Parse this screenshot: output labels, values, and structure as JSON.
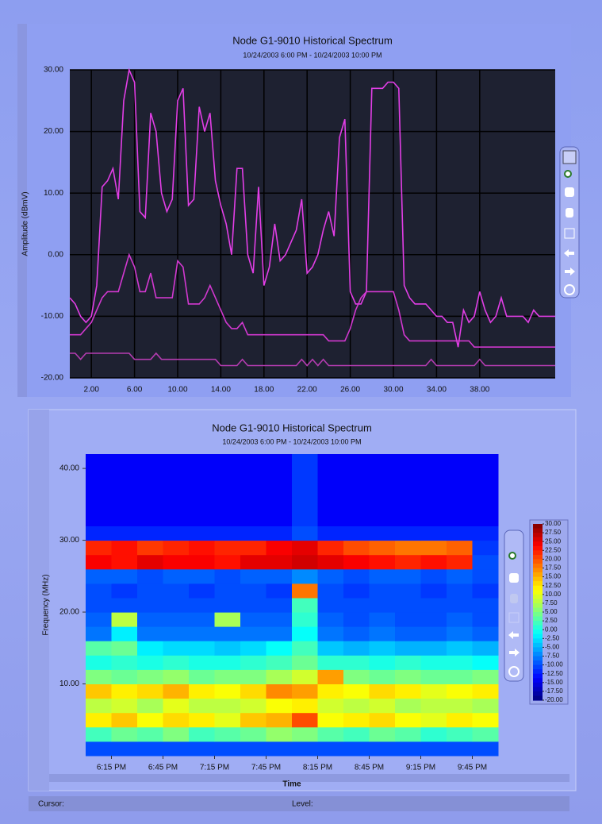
{
  "chart_data": [
    {
      "type": "line",
      "title": "Node G1-9010 Historical Spectrum",
      "subtitle": "10/24/2003 6:00 PM - 10/24/2003 10:00 PM",
      "ylabel": "Amplitude (dBmV)",
      "x": [
        0,
        0.5,
        1,
        1.5,
        2,
        2.5,
        3,
        3.5,
        4,
        4.5,
        5,
        5.5,
        6,
        6.5,
        7,
        7.5,
        8,
        8.5,
        9,
        9.5,
        10,
        10.5,
        11,
        11.5,
        12,
        12.5,
        13,
        13.5,
        14,
        14.5,
        15,
        15.5,
        16,
        16.5,
        17,
        17.5,
        18,
        18.5,
        19,
        19.5,
        20,
        20.5,
        21,
        21.5,
        22,
        22.5,
        23,
        23.5,
        24,
        24.5,
        25,
        25.5,
        26,
        26.5,
        27,
        27.5,
        28,
        28.5,
        29,
        29.5,
        30,
        30.5,
        31,
        31.5,
        32,
        32.5,
        33,
        33.5,
        34,
        34.5,
        35,
        35.5,
        36,
        36.5,
        37,
        37.5,
        38,
        38.5,
        39,
        39.5,
        40,
        40.5,
        41,
        41.5,
        42,
        42.5,
        43,
        43.5,
        44,
        44.5,
        45
      ],
      "series": [
        {
          "color": "#e23ee6",
          "values": [
            -7,
            -8,
            -10,
            -11,
            -10,
            -5,
            11,
            12,
            14,
            9,
            25,
            30,
            28,
            7,
            6,
            23,
            20,
            10,
            7,
            9,
            25,
            27,
            8,
            9,
            24,
            20,
            23,
            12,
            8,
            5,
            0,
            14,
            14,
            0,
            -3,
            11,
            -5,
            -2,
            5,
            -1,
            0,
            2,
            4,
            9,
            -3,
            -2,
            0,
            4,
            7,
            3,
            19,
            22,
            -6,
            -8,
            -8,
            -6,
            27,
            27,
            27,
            28,
            28,
            27,
            -5,
            -7,
            -8,
            -8,
            -8,
            -9,
            -10,
            -10,
            -11,
            -11,
            -15,
            -9,
            -11,
            -10,
            -6,
            -9,
            -11,
            -10,
            -7,
            -10,
            -10,
            -10,
            -10,
            -11,
            -9,
            -10,
            -10,
            -10,
            -10
          ]
        },
        {
          "color": "#d238d0",
          "values": [
            -13,
            -13,
            -13,
            -12,
            -11,
            -9,
            -7,
            -6,
            -6,
            -6,
            -3,
            0,
            -2,
            -6,
            -6,
            -3,
            -7,
            -7,
            -7,
            -7,
            -1,
            -2,
            -8,
            -8,
            -8,
            -7,
            -5,
            -7,
            -9,
            -11,
            -12,
            -12,
            -11,
            -13,
            -13,
            -13,
            -13,
            -13,
            -13,
            -13,
            -13,
            -13,
            -13,
            -13,
            -13,
            -13,
            -13,
            -13,
            -14,
            -14,
            -14,
            -14,
            -12,
            -9,
            -7,
            -6,
            -6,
            -6,
            -6,
            -6,
            -6,
            -9,
            -13,
            -14,
            -14,
            -14,
            -14,
            -14,
            -14,
            -14,
            -14,
            -14,
            -14,
            -14,
            -14,
            -15,
            -15,
            -15,
            -15,
            -15,
            -15,
            -15,
            -15,
            -15,
            -15,
            -15,
            -15,
            -15,
            -15,
            -15,
            -15
          ]
        },
        {
          "color": "#b43cb0",
          "values": [
            -16,
            -16,
            -17,
            -16,
            -16,
            -16,
            -16,
            -16,
            -16,
            -16,
            -16,
            -16,
            -17,
            -17,
            -17,
            -17,
            -16,
            -17,
            -17,
            -17,
            -17,
            -17,
            -17,
            -17,
            -17,
            -17,
            -17,
            -17,
            -18,
            -18,
            -18,
            -18,
            -17,
            -18,
            -18,
            -18,
            -18,
            -18,
            -18,
            -18,
            -18,
            -18,
            -18,
            -17,
            -18,
            -17,
            -18,
            -17,
            -18,
            -18,
            -18,
            -18,
            -18,
            -18,
            -18,
            -18,
            -18,
            -18,
            -18,
            -18,
            -18,
            -18,
            -18,
            -18,
            -18,
            -18,
            -18,
            -17,
            -18,
            -18,
            -18,
            -18,
            -18,
            -18,
            -18,
            -18,
            -17,
            -18,
            -18,
            -18,
            -18,
            -18,
            -18,
            -18,
            -18,
            -18,
            -18,
            -18,
            -18,
            -18,
            -18
          ]
        }
      ],
      "xlim": [
        0,
        45
      ],
      "xticks": [
        {
          "value": 2,
          "label": "2.00"
        },
        {
          "value": 6,
          "label": "6.00"
        },
        {
          "value": 10,
          "label": "10.00"
        },
        {
          "value": 14,
          "label": "14.00"
        },
        {
          "value": 18,
          "label": "18.00"
        },
        {
          "value": 22,
          "label": "22.00"
        },
        {
          "value": 26,
          "label": "26.00"
        },
        {
          "value": 30,
          "label": "30.00"
        },
        {
          "value": 34,
          "label": "34.00"
        },
        {
          "value": 38,
          "label": "38.00"
        }
      ],
      "ylim": [
        -20,
        30
      ],
      "yticks": [
        {
          "value": 30,
          "label": "30.00"
        },
        {
          "value": 20,
          "label": "20.00"
        },
        {
          "value": 10,
          "label": "10.00"
        },
        {
          "value": 0,
          "label": "0.00"
        },
        {
          "value": -10,
          "label": "-10.00"
        },
        {
          "value": -20,
          "label": "-20.00"
        }
      ],
      "grid": true
    },
    {
      "type": "heatmap",
      "title": "Node G1-9010 Historical Spectrum",
      "subtitle": "10/24/2003 6:00 PM - 10/24/2003 10:00 PM",
      "ylabel": "Frequency (MHz)",
      "xlabel": "Time",
      "x": [
        18.125,
        18.375,
        18.625,
        18.875,
        19.125,
        19.375,
        19.625,
        19.875,
        20.125,
        20.375,
        20.625,
        20.875,
        21.125,
        21.375,
        21.625,
        21.875
      ],
      "y": [
        1,
        3,
        5,
        7,
        9,
        11,
        13,
        15,
        17,
        19,
        21,
        23,
        25,
        27,
        29,
        31,
        33,
        35,
        37,
        39,
        41
      ],
      "z": [
        [
          -10,
          -10,
          -10,
          -10,
          -10,
          -10,
          -10,
          -10,
          -10,
          -10,
          -10,
          -10,
          -10,
          -10,
          -10,
          -10
        ],
        [
          2,
          4,
          3,
          5,
          2,
          3,
          4,
          6,
          5,
          3,
          2,
          4,
          3,
          1,
          2,
          3
        ],
        [
          12,
          14,
          11,
          13,
          12,
          10,
          14,
          15,
          20,
          11,
          12,
          13,
          11,
          10,
          12,
          11
        ],
        [
          8,
          9,
          7,
          10,
          8,
          8,
          9,
          11,
          12,
          9,
          8,
          9,
          7,
          8,
          8,
          7
        ],
        [
          14,
          12,
          13,
          15,
          12,
          11,
          13,
          17,
          16,
          12,
          11,
          13,
          12,
          10,
          11,
          12
        ],
        [
          5,
          4,
          5,
          6,
          4,
          5,
          5,
          7,
          9,
          16,
          5,
          4,
          5,
          4,
          4,
          5
        ],
        [
          0,
          1,
          0,
          1,
          0,
          0,
          1,
          2,
          4,
          1,
          1,
          0,
          1,
          0,
          0,
          -1
        ],
        [
          3,
          4,
          -2,
          -3,
          -3,
          -4,
          -3,
          -1,
          2,
          -4,
          -5,
          -4,
          -5,
          -5,
          -4,
          -5
        ],
        [
          -8,
          -2,
          -8,
          -8,
          -8,
          -8,
          -8,
          -8,
          -1,
          -8,
          -9,
          -8,
          -9,
          -9,
          -8,
          -9
        ],
        [
          -9,
          8,
          -9,
          -9,
          -9,
          7,
          -9,
          -9,
          1,
          -9,
          -10,
          -9,
          -10,
          -10,
          -9,
          -10
        ],
        [
          -10,
          -10,
          -10,
          -10,
          -10,
          -10,
          -10,
          -10,
          2,
          -10,
          -10,
          -10,
          -10,
          -10,
          -10,
          -10
        ],
        [
          -10,
          -11,
          -10,
          -10,
          -11,
          -10,
          -10,
          -11,
          18,
          -10,
          -11,
          -10,
          -10,
          -11,
          -10,
          -11
        ],
        [
          -9,
          -9,
          -10,
          -9,
          -9,
          -10,
          -9,
          -9,
          -7,
          -9,
          -10,
          -9,
          -9,
          -10,
          -9,
          -10
        ],
        [
          24,
          23,
          25,
          24,
          24,
          23,
          25,
          25,
          26,
          25,
          24,
          23,
          22,
          23,
          22,
          -10
        ],
        [
          22,
          23,
          21,
          22,
          23,
          22,
          22,
          24,
          25,
          22,
          20,
          19,
          18,
          18,
          19,
          -11
        ],
        [
          -12,
          -12,
          -12,
          -12,
          -12,
          -12,
          -12,
          -12,
          -10,
          -12,
          -12,
          -12,
          -12,
          -12,
          -12,
          -12
        ],
        [
          -14,
          -14,
          -14,
          -14,
          -14,
          -14,
          -14,
          -14,
          -11,
          -14,
          -14,
          -14,
          -14,
          -14,
          -14,
          -14
        ],
        [
          -14,
          -14,
          -14,
          -14,
          -14,
          -14,
          -14,
          -14,
          -11,
          -14,
          -14,
          -14,
          -14,
          -14,
          -14,
          -14
        ],
        [
          -14,
          -14,
          -14,
          -14,
          -14,
          -14,
          -14,
          -14,
          -11,
          -14,
          -14,
          -14,
          -14,
          -14,
          -14,
          -14
        ],
        [
          -14,
          -14,
          -14,
          -14,
          -14,
          -14,
          -14,
          -14,
          -11,
          -14,
          -14,
          -14,
          -14,
          -14,
          -14,
          -14
        ],
        [
          -14,
          -14,
          -14,
          -14,
          -14,
          -14,
          -14,
          -14,
          -11,
          -14,
          -14,
          -14,
          -14,
          -14,
          -14,
          -14
        ]
      ],
      "xlim": [
        18,
        22
      ],
      "xticks": [
        {
          "value": 18.25,
          "label": "6:15 PM"
        },
        {
          "value": 18.75,
          "label": "6:45 PM"
        },
        {
          "value": 19.25,
          "label": "7:15 PM"
        },
        {
          "value": 19.75,
          "label": "7:45 PM"
        },
        {
          "value": 20.25,
          "label": "8:15 PM"
        },
        {
          "value": 20.75,
          "label": "8:45 PM"
        },
        {
          "value": 21.25,
          "label": "9:15 PM"
        },
        {
          "value": 21.75,
          "label": "9:45 PM"
        }
      ],
      "ylim": [
        0,
        42
      ],
      "yticks": [
        {
          "value": 10,
          "label": "10.00"
        },
        {
          "value": 20,
          "label": "20.00"
        },
        {
          "value": 30,
          "label": "30.00"
        },
        {
          "value": 40,
          "label": "40.00"
        }
      ],
      "zlim": [
        -20,
        30
      ],
      "colormap": "jet",
      "colorbar_ticks": [
        {
          "value": 30,
          "label": "30.00"
        },
        {
          "value": 27.5,
          "label": "27.50"
        },
        {
          "value": 25,
          "label": "25.00"
        },
        {
          "value": 22.5,
          "label": "22.50"
        },
        {
          "value": 20,
          "label": "20.00"
        },
        {
          "value": 17.5,
          "label": "17.50"
        },
        {
          "value": 15,
          "label": "15.00"
        },
        {
          "value": 12.5,
          "label": "12.50"
        },
        {
          "value": 10,
          "label": "10.00"
        },
        {
          "value": 7.5,
          "label": "7.50"
        },
        {
          "value": 5,
          "label": "5.00"
        },
        {
          "value": 2.5,
          "label": "2.50"
        },
        {
          "value": 0,
          "label": "0.00"
        },
        {
          "value": -2.5,
          "label": "-2.50"
        },
        {
          "value": -5,
          "label": "-5.00"
        },
        {
          "value": -7.5,
          "label": "-7.50"
        },
        {
          "value": -10,
          "label": "-10.00"
        },
        {
          "value": -12.5,
          "label": "-12.50"
        },
        {
          "value": -15,
          "label": "-15.00"
        },
        {
          "value": -17.5,
          "label": "-17.50"
        },
        {
          "value": -20,
          "label": "-20.00"
        }
      ]
    }
  ],
  "status_bar": {
    "cursor_label": "Cursor:",
    "level_label": "Level:"
  }
}
